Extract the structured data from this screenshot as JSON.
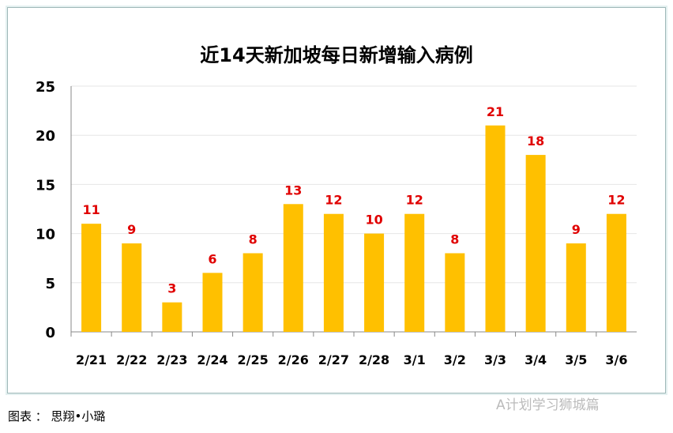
{
  "chart_data": {
    "type": "bar",
    "title": "近14天新加坡每日新增输入病例",
    "categories": [
      "2/21",
      "2/22",
      "2/23",
      "2/24",
      "2/25",
      "2/26",
      "2/27",
      "2/28",
      "3/1",
      "3/2",
      "3/3",
      "3/4",
      "3/5",
      "3/6"
    ],
    "values": [
      11,
      9,
      3,
      6,
      8,
      13,
      12,
      10,
      12,
      8,
      21,
      18,
      9,
      12
    ],
    "ylim": [
      0,
      25
    ],
    "yticks": [
      0,
      5,
      10,
      15,
      20,
      25
    ],
    "grid": true,
    "bar_color": "#ffc000",
    "label_color": "#e00000"
  },
  "caption": "图表 ： 思翔•小璐",
  "watermark": "A计划学习狮城篇"
}
